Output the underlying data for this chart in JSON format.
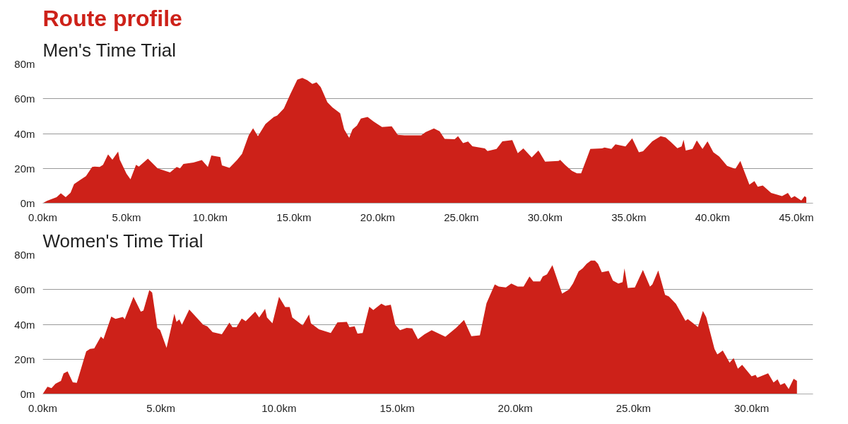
{
  "chart_data": [
    {
      "type": "area",
      "title": "Route profile",
      "subtitle": "Men's Time Trial",
      "grid": "y",
      "x": [
        0,
        0.25,
        0.83,
        1.08,
        1.37,
        1.66,
        1.87,
        2.29,
        2.58,
        2.95,
        3.1,
        3.4,
        3.6,
        3.9,
        4.16,
        4.5,
        4.6,
        5.0,
        5.24,
        5.57,
        5.74,
        6.28,
        6.86,
        7.6,
        8.0,
        8.2,
        8.4,
        9.0,
        9.5,
        9.86,
        10.07,
        10.6,
        10.7,
        11.15,
        11.6,
        11.9,
        12.3,
        12.56,
        12.85,
        13.3,
        13.8,
        14.0,
        14.4,
        14.77,
        15.2,
        15.5,
        15.8,
        16.1,
        16.35,
        16.6,
        17.0,
        17.3,
        17.76,
        18.0,
        18.3,
        18.5,
        18.76,
        19.0,
        19.4,
        19.76,
        20.26,
        20.84,
        21.2,
        21.6,
        22.6,
        22.86,
        23.36,
        23.7,
        24.0,
        24.6,
        24.8,
        25.1,
        25.4,
        25.66,
        26.4,
        26.56,
        27.1,
        27.45,
        28.04,
        28.37,
        28.7,
        29.2,
        29.6,
        30.0,
        30.8,
        30.9,
        31.2,
        31.6,
        31.9,
        32.15,
        32.5,
        32.7,
        33.4,
        33.55,
        33.96,
        34.2,
        34.8,
        35.2,
        35.6,
        35.85,
        36.4,
        36.9,
        37.2,
        37.5,
        37.9,
        38.15,
        38.27,
        38.4,
        38.8,
        39.06,
        39.4,
        39.7,
        40.05,
        40.4,
        40.87,
        41.36,
        41.66,
        41.94,
        42.2,
        42.5,
        42.7,
        43.0,
        43.5,
        44.15,
        44.5,
        44.7,
        44.9,
        45.3,
        45.5,
        45.6
      ],
      "series": [
        {
          "color": "#cd2119",
          "values": [
            0,
            1.3,
            3.5,
            5.7,
            3.5,
            6,
            11,
            13.7,
            15.5,
            20.8,
            21,
            20.8,
            22,
            28,
            25,
            29.6,
            25,
            17,
            13.7,
            22,
            21,
            25.6,
            20,
            17.7,
            20.8,
            20,
            22.5,
            23.4,
            24.8,
            20.8,
            27.4,
            26.5,
            21.7,
            20.3,
            24.8,
            28.3,
            39,
            43,
            38.5,
            45.5,
            49.5,
            50.4,
            54.4,
            62.3,
            71,
            72,
            70.7,
            68.5,
            69.4,
            66.7,
            58,
            55,
            51.7,
            42.4,
            37.6,
            42.4,
            44.6,
            48.6,
            49.5,
            46.9,
            43.8,
            44.2,
            39.3,
            39,
            39,
            40.8,
            42.9,
            41.3,
            37,
            36.8,
            38.5,
            34.5,
            35.4,
            32.7,
            31.5,
            30,
            31.2,
            35.5,
            36.2,
            28.7,
            31.5,
            26.3,
            30.3,
            23.9,
            24.3,
            24.9,
            21.9,
            18.6,
            17.2,
            17.2,
            26,
            31.2,
            31.5,
            32,
            31.2,
            33.8,
            32.6,
            37.3,
            29.2,
            29.8,
            35.5,
            38.5,
            37.8,
            35.2,
            31.6,
            32.6,
            36.4,
            30.3,
            31.2,
            36,
            31.2,
            35.5,
            29.2,
            26.8,
            21.4,
            19.7,
            24.3,
            17.2,
            10.7,
            12.7,
            9.4,
            10.2,
            5.9,
            4.1,
            5.9,
            2.9,
            4.1,
            1.5,
            4.1,
            3.2
          ]
        }
      ],
      "xlim": [
        0,
        46
      ],
      "ylim": [
        0,
        80
      ],
      "xticks": [
        {
          "value": 0,
          "label": "0.0km"
        },
        {
          "value": 5,
          "label": "5.0km"
        },
        {
          "value": 10,
          "label": "10.0km"
        },
        {
          "value": 15,
          "label": "15.0km"
        },
        {
          "value": 20,
          "label": "20.0km"
        },
        {
          "value": 25,
          "label": "25.0km"
        },
        {
          "value": 30,
          "label": "30.0km"
        },
        {
          "value": 35,
          "label": "35.0km"
        },
        {
          "value": 40,
          "label": "40.0km"
        },
        {
          "value": 45,
          "label": "45.0km"
        }
      ],
      "yticks": [
        {
          "value": 0,
          "label": "0m"
        },
        {
          "value": 20,
          "label": "20m"
        },
        {
          "value": 40,
          "label": "40m"
        },
        {
          "value": 60,
          "label": "60m"
        },
        {
          "value": 80,
          "label": "80m"
        }
      ]
    },
    {
      "type": "area",
      "subtitle": "Women's Time Trial",
      "grid": "y",
      "x": [
        0,
        0.2,
        0.37,
        0.54,
        0.77,
        0.88,
        1.05,
        1.27,
        1.44,
        1.56,
        1.84,
        2.0,
        2.18,
        2.46,
        2.57,
        2.9,
        3.08,
        3.39,
        3.47,
        3.84,
        4.15,
        4.26,
        4.51,
        4.63,
        4.85,
        4.97,
        5.24,
        5.57,
        5.66,
        5.78,
        5.89,
        6.2,
        6.79,
        6.96,
        7.19,
        7.58,
        7.9,
        8.03,
        8.2,
        8.42,
        8.59,
        8.99,
        9.16,
        9.41,
        9.49,
        9.72,
        10.0,
        10.26,
        10.45,
        10.56,
        11.0,
        11.27,
        11.35,
        11.69,
        12.19,
        12.47,
        12.87,
        12.98,
        13.2,
        13.32,
        13.54,
        13.82,
        13.99,
        14.33,
        14.5,
        14.73,
        14.92,
        15.12,
        15.4,
        15.64,
        15.88,
        16.16,
        16.46,
        17.04,
        17.5,
        17.83,
        18.14,
        18.5,
        18.78,
        19.13,
        19.3,
        19.6,
        19.83,
        20.1,
        20.35,
        20.6,
        20.76,
        21.05,
        21.16,
        21.34,
        21.57,
        21.98,
        22.27,
        22.44,
        22.68,
        22.85,
        23.02,
        23.2,
        23.37,
        23.5,
        23.66,
        23.95,
        24.13,
        24.36,
        24.54,
        24.62,
        24.76,
        25.06,
        25.4,
        25.7,
        25.8,
        26.05,
        26.34,
        26.5,
        26.8,
        27.2,
        27.3,
        27.73,
        27.94,
        28.08,
        28.43,
        28.55,
        28.78,
        29.07,
        29.24,
        29.42,
        29.6,
        30.0,
        30.17,
        30.24,
        30.7,
        30.93,
        31.1,
        31.22,
        31.4,
        31.57,
        31.78,
        31.92
      ],
      "series": [
        {
          "color": "#cd2119",
          "values": [
            0,
            4.2,
            3.3,
            5.9,
            7.5,
            11.8,
            13,
            6.7,
            6.4,
            11.8,
            24.5,
            25.9,
            26.2,
            33,
            31.6,
            44.5,
            43.1,
            44.3,
            42.9,
            55.8,
            47.3,
            47.9,
            59.7,
            58.3,
            38,
            36.7,
            26.5,
            46.1,
            41.4,
            42.8,
            39.8,
            48.5,
            39.8,
            38.9,
            35.5,
            34.3,
            41,
            38.4,
            38.4,
            43.4,
            41.8,
            47.3,
            44,
            48.9,
            44,
            40.6,
            55.8,
            50,
            50,
            44,
            39.4,
            45.7,
            40.6,
            37.2,
            35,
            41.1,
            41.4,
            38.4,
            38.9,
            34.7,
            35,
            50.2,
            48.2,
            51.9,
            50.7,
            51.3,
            39.8,
            36.7,
            38,
            37.7,
            31.5,
            34.3,
            36.7,
            32.9,
            38.1,
            42.5,
            33.2,
            33.7,
            52.1,
            62.9,
            61.7,
            61.2,
            63.5,
            61.7,
            61.7,
            67.5,
            64.7,
            64.7,
            67.5,
            68.7,
            74,
            57.7,
            60,
            63.5,
            70.5,
            72.2,
            74.8,
            76.6,
            76.6,
            74.8,
            70,
            70.8,
            65.2,
            63.5,
            64.3,
            72.2,
            60.9,
            61.2,
            71.3,
            61.7,
            62.9,
            71,
            57,
            56,
            51.8,
            42,
            43,
            38.5,
            47.7,
            44.2,
            25.9,
            22.7,
            25,
            18,
            20.6,
            14.5,
            16.8,
            10.2,
            11,
            9.3,
            11.9,
            6.6,
            8.4,
            5.2,
            6.3,
            2.8,
            8.7,
            7.5
          ]
        }
      ],
      "xlim": [
        0,
        32.6
      ],
      "ylim": [
        0,
        80
      ],
      "xticks": [
        {
          "value": 0,
          "label": "0.0km"
        },
        {
          "value": 5,
          "label": "5.0km"
        },
        {
          "value": 10,
          "label": "10.0km"
        },
        {
          "value": 15,
          "label": "15.0km"
        },
        {
          "value": 20,
          "label": "20.0km"
        },
        {
          "value": 25,
          "label": "25.0km"
        },
        {
          "value": 30,
          "label": "30.0km"
        }
      ],
      "yticks": [
        {
          "value": 0,
          "label": "0m"
        },
        {
          "value": 20,
          "label": "20m"
        },
        {
          "value": 40,
          "label": "40m"
        },
        {
          "value": 60,
          "label": "60m"
        },
        {
          "value": 80,
          "label": "80m"
        }
      ]
    }
  ]
}
